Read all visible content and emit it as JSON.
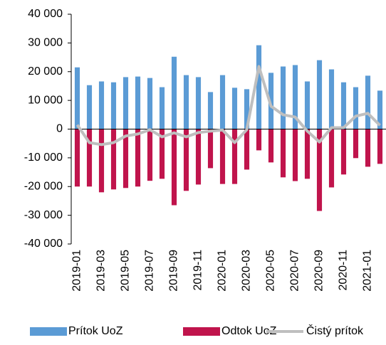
{
  "chart_data": {
    "type": "bar",
    "categories": [
      "2019-01",
      null,
      "2019-03",
      null,
      "2019-05",
      null,
      "2019-07",
      null,
      "2019-09",
      null,
      "2019-11",
      null,
      "2020-01",
      null,
      "2020-03",
      null,
      "2020-05",
      null,
      "2020-07",
      null,
      "2020-09",
      null,
      "2020-11",
      null,
      "2021-01",
      null
    ],
    "series": [
      {
        "name": "Prítok UoZ",
        "type": "bar",
        "color": "#5b9bd5",
        "values": [
          21500,
          15300,
          16600,
          16300,
          18100,
          18300,
          17800,
          14600,
          25200,
          18800,
          18100,
          12900,
          18800,
          14400,
          13900,
          29200,
          19600,
          21800,
          22300,
          16600,
          24000,
          20800,
          16300,
          14600,
          18600,
          13400
        ]
      },
      {
        "name": "Odtok UoZ",
        "type": "bar",
        "color": "#c0144c",
        "values": [
          -20000,
          -20000,
          -22000,
          -21000,
          -20500,
          -20000,
          -18000,
          -17300,
          -26500,
          -21500,
          -19300,
          -13600,
          -19100,
          -19100,
          -14100,
          -7400,
          -11600,
          -16800,
          -18100,
          -17300,
          -28500,
          -20300,
          -15800,
          -10100,
          -13100,
          -12100
        ]
      },
      {
        "name": "Čistý prítok",
        "type": "line",
        "color": "#bfbfbf",
        "values": [
          1500,
          -4700,
          -5400,
          -4700,
          -2400,
          -1700,
          -200,
          -2700,
          -1300,
          -2700,
          -1200,
          -700,
          -300,
          -4700,
          -200,
          21800,
          8000,
          5000,
          4200,
          -700,
          -4500,
          500,
          500,
          4500,
          5500,
          1300
        ]
      }
    ],
    "ylim": [
      -40000,
      40000
    ],
    "yticks": [
      {
        "value": -40000,
        "label": "-40 000"
      },
      {
        "value": -30000,
        "label": "-30 000"
      },
      {
        "value": -20000,
        "label": "-20 000"
      },
      {
        "value": -10000,
        "label": "-10 000"
      },
      0,
      {
        "value": 10000,
        "label": "10 000"
      },
      {
        "value": 20000,
        "label": "20 000"
      },
      {
        "value": 30000,
        "label": "30 000"
      },
      {
        "value": 40000,
        "label": "40 000"
      }
    ],
    "grid": false,
    "legend": "bottom"
  }
}
